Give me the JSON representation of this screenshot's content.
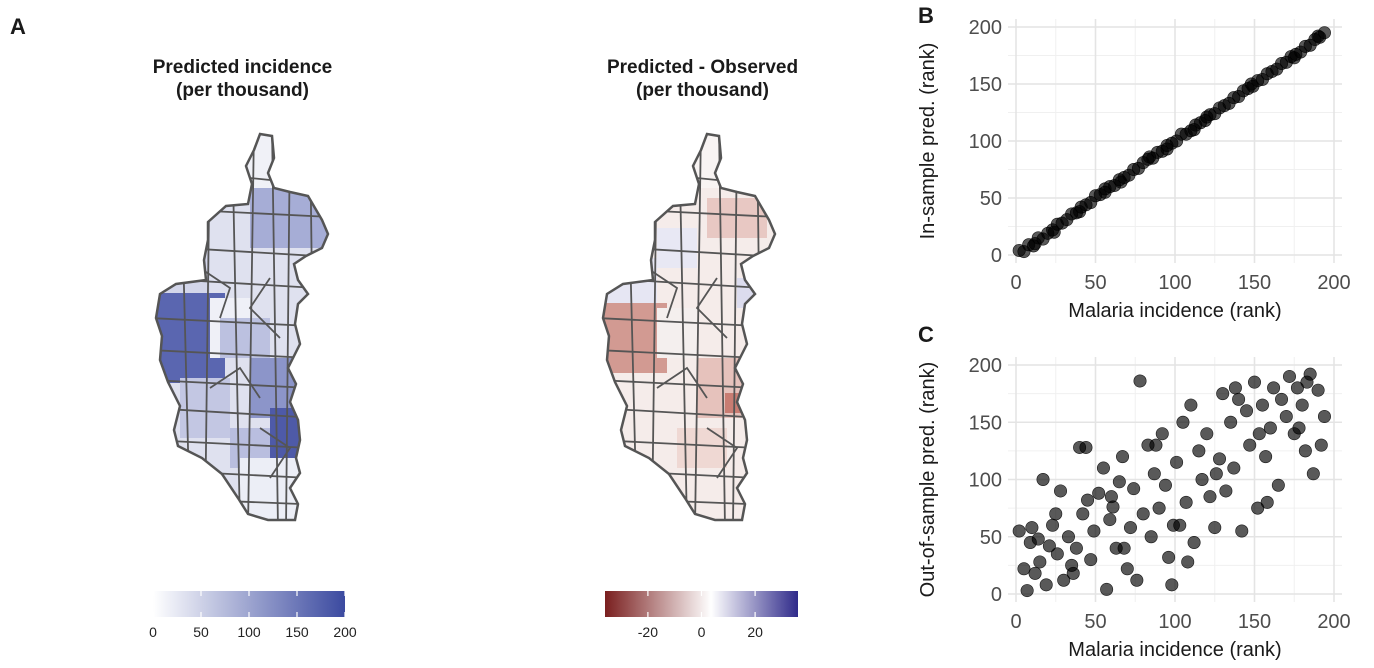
{
  "panels": {
    "a": "A",
    "b": "B",
    "c": "C"
  },
  "map_left": {
    "title": "Predicted incidence\n(per thousand)",
    "colorbar_ticks": [
      "0",
      "50",
      "100",
      "150",
      "200"
    ],
    "colorbar_colors": [
      "#ffffff",
      "#3b4aa0"
    ]
  },
  "map_right": {
    "title": "Predicted - Observed\n(per thousand)",
    "colorbar_ticks": [
      "-20",
      "0",
      "20"
    ],
    "colorbar_colors": [
      "#7a1f1f",
      "#ffffff",
      "#2f2a8a"
    ]
  },
  "chart_data": [
    {
      "type": "scatter",
      "title": "",
      "xlabel": "Malaria incidence (rank)",
      "ylabel": "In-sample pred. (rank)",
      "xlim": [
        0,
        200
      ],
      "ylim": [
        0,
        200
      ],
      "xticks": [
        0,
        50,
        100,
        150,
        200
      ],
      "yticks": [
        0,
        50,
        100,
        150,
        200
      ],
      "grid": true,
      "points": [
        [
          2,
          4
        ],
        [
          5,
          3
        ],
        [
          8,
          9
        ],
        [
          11,
          8
        ],
        [
          14,
          15
        ],
        [
          17,
          14
        ],
        [
          20,
          19
        ],
        [
          23,
          22
        ],
        [
          26,
          27
        ],
        [
          29,
          28
        ],
        [
          32,
          31
        ],
        [
          35,
          36
        ],
        [
          38,
          37
        ],
        [
          41,
          42
        ],
        [
          44,
          44
        ],
        [
          47,
          46
        ],
        [
          50,
          52
        ],
        [
          53,
          53
        ],
        [
          56,
          55
        ],
        [
          59,
          60
        ],
        [
          62,
          61
        ],
        [
          65,
          66
        ],
        [
          68,
          68
        ],
        [
          71,
          70
        ],
        [
          74,
          75
        ],
        [
          77,
          76
        ],
        [
          80,
          81
        ],
        [
          83,
          84
        ],
        [
          86,
          85
        ],
        [
          89,
          90
        ],
        [
          92,
          91
        ],
        [
          95,
          96
        ],
        [
          98,
          98
        ],
        [
          101,
          100
        ],
        [
          104,
          106
        ],
        [
          107,
          106
        ],
        [
          110,
          109
        ],
        [
          113,
          114
        ],
        [
          116,
          116
        ],
        [
          119,
          118
        ],
        [
          122,
          123
        ],
        [
          125,
          124
        ],
        [
          128,
          129
        ],
        [
          131,
          131
        ],
        [
          134,
          133
        ],
        [
          137,
          138
        ],
        [
          140,
          139
        ],
        [
          143,
          144
        ],
        [
          146,
          146
        ],
        [
          149,
          148
        ],
        [
          152,
          153
        ],
        [
          155,
          154
        ],
        [
          158,
          159
        ],
        [
          161,
          161
        ],
        [
          164,
          163
        ],
        [
          167,
          168
        ],
        [
          170,
          169
        ],
        [
          173,
          174
        ],
        [
          176,
          176
        ],
        [
          179,
          178
        ],
        [
          182,
          183
        ],
        [
          185,
          184
        ],
        [
          188,
          189
        ],
        [
          191,
          191
        ],
        [
          194,
          195
        ],
        [
          12,
          10
        ],
        [
          40,
          38
        ],
        [
          66,
          64
        ],
        [
          95,
          93
        ],
        [
          120,
          121
        ],
        [
          148,
          150
        ],
        [
          175,
          173
        ],
        [
          190,
          192
        ],
        [
          24,
          20
        ],
        [
          56,
          58
        ],
        [
          84,
          86
        ],
        [
          112,
          110
        ]
      ]
    },
    {
      "type": "scatter",
      "title": "",
      "xlabel": "Malaria incidence (rank)",
      "ylabel": "Out-of-sample pred. (rank)",
      "xlim": [
        0,
        200
      ],
      "ylim": [
        0,
        200
      ],
      "xticks": [
        0,
        50,
        100,
        150,
        200
      ],
      "yticks": [
        0,
        50,
        100,
        150,
        200
      ],
      "grid": true,
      "points": [
        [
          2,
          55
        ],
        [
          5,
          22
        ],
        [
          7,
          3
        ],
        [
          9,
          45
        ],
        [
          12,
          18
        ],
        [
          15,
          28
        ],
        [
          17,
          100
        ],
        [
          19,
          8
        ],
        [
          21,
          42
        ],
        [
          23,
          60
        ],
        [
          26,
          35
        ],
        [
          28,
          90
        ],
        [
          30,
          12
        ],
        [
          33,
          50
        ],
        [
          35,
          25
        ],
        [
          38,
          40
        ],
        [
          40,
          128
        ],
        [
          42,
          70
        ],
        [
          45,
          82
        ],
        [
          47,
          30
        ],
        [
          49,
          55
        ],
        [
          52,
          88
        ],
        [
          55,
          110
        ],
        [
          57,
          4
        ],
        [
          59,
          65
        ],
        [
          61,
          76
        ],
        [
          63,
          40
        ],
        [
          65,
          98
        ],
        [
          67,
          120
        ],
        [
          70,
          22
        ],
        [
          72,
          58
        ],
        [
          74,
          92
        ],
        [
          76,
          12
        ],
        [
          78,
          186
        ],
        [
          80,
          70
        ],
        [
          83,
          130
        ],
        [
          85,
          50
        ],
        [
          87,
          105
        ],
        [
          90,
          75
        ],
        [
          92,
          140
        ],
        [
          94,
          95
        ],
        [
          96,
          32
        ],
        [
          98,
          8
        ],
        [
          101,
          115
        ],
        [
          103,
          60
        ],
        [
          105,
          150
        ],
        [
          107,
          80
        ],
        [
          110,
          165
        ],
        [
          112,
          45
        ],
        [
          115,
          125
        ],
        [
          117,
          100
        ],
        [
          120,
          140
        ],
        [
          122,
          85
        ],
        [
          125,
          58
        ],
        [
          128,
          118
        ],
        [
          130,
          175
        ],
        [
          132,
          90
        ],
        [
          135,
          150
        ],
        [
          137,
          110
        ],
        [
          140,
          170
        ],
        [
          142,
          55
        ],
        [
          145,
          160
        ],
        [
          147,
          130
        ],
        [
          150,
          185
        ],
        [
          152,
          75
        ],
        [
          155,
          165
        ],
        [
          157,
          120
        ],
        [
          160,
          145
        ],
        [
          162,
          180
        ],
        [
          165,
          95
        ],
        [
          167,
          170
        ],
        [
          170,
          155
        ],
        [
          172,
          190
        ],
        [
          175,
          140
        ],
        [
          177,
          180
        ],
        [
          180,
          165
        ],
        [
          182,
          125
        ],
        [
          185,
          192
        ],
        [
          187,
          105
        ],
        [
          190,
          178
        ],
        [
          192,
          130
        ],
        [
          194,
          155
        ],
        [
          10,
          58
        ],
        [
          25,
          70
        ],
        [
          44,
          128
        ],
        [
          60,
          85
        ],
        [
          88,
          130
        ],
        [
          108,
          28
        ],
        [
          138,
          180
        ],
        [
          158,
          80
        ],
        [
          183,
          185
        ],
        [
          14,
          48
        ],
        [
          36,
          18
        ],
        [
          68,
          40
        ],
        [
          99,
          60
        ],
        [
          126,
          105
        ],
        [
          153,
          140
        ],
        [
          178,
          145
        ]
      ]
    }
  ]
}
